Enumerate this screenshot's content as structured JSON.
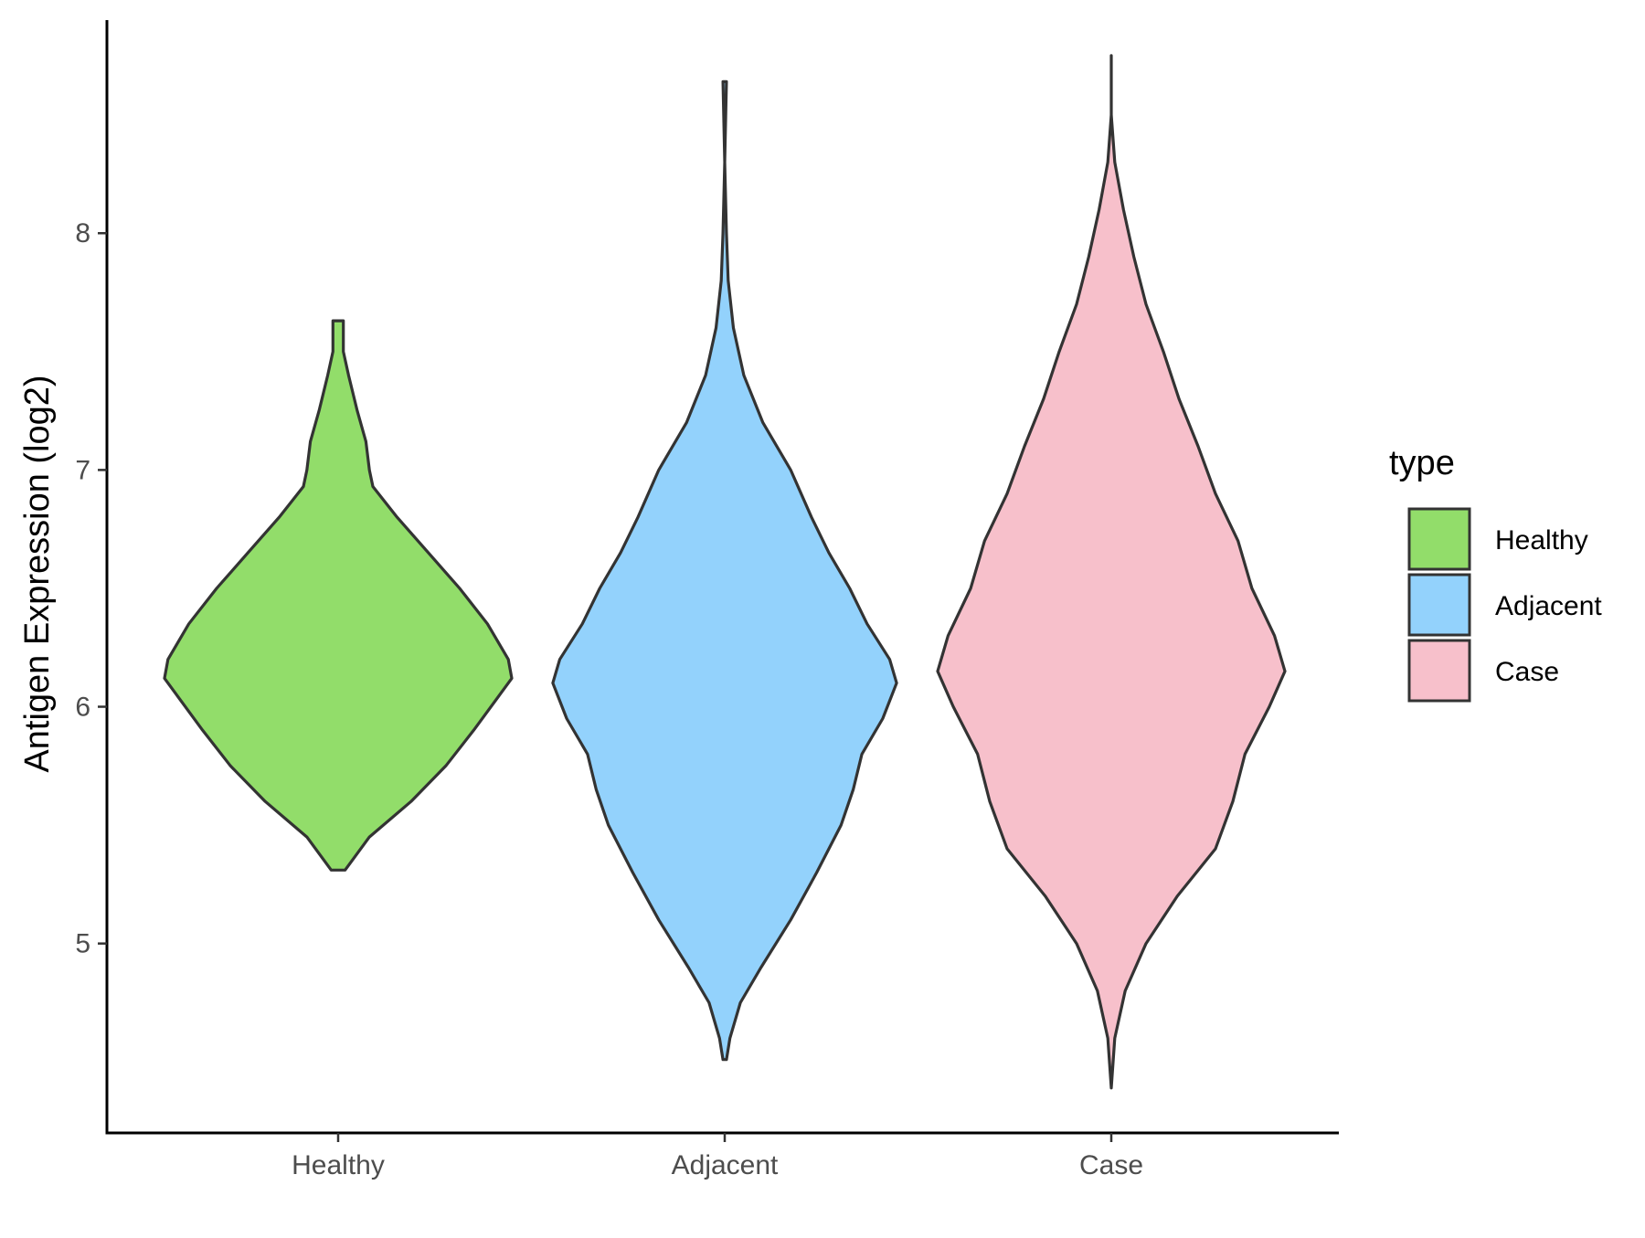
{
  "chart_data": {
    "type": "violin",
    "title": "",
    "xlabel": "",
    "ylabel": "Antigen Expression (log2)",
    "ylim": [
      4.2,
      8.9
    ],
    "yticks": [
      5,
      6,
      7,
      8
    ],
    "categories": [
      "Healthy",
      "Adjacent",
      "Case"
    ],
    "grid": false,
    "legend": {
      "title": "type",
      "position": "right",
      "entries": [
        "Healthy",
        "Adjacent",
        "Case"
      ]
    },
    "colors": {
      "Healthy": "#92dd6a",
      "Adjacent": "#93d2fc",
      "Case": "#f7c0cb",
      "outline": "#333333"
    },
    "series": [
      {
        "name": "Healthy",
        "min": 5.31,
        "max": 7.63,
        "density": [
          [
            5.31,
            0.04
          ],
          [
            5.45,
            0.18
          ],
          [
            5.6,
            0.42
          ],
          [
            5.75,
            0.62
          ],
          [
            5.9,
            0.78
          ],
          [
            6.05,
            0.93
          ],
          [
            6.12,
            1.0
          ],
          [
            6.2,
            0.98
          ],
          [
            6.35,
            0.86
          ],
          [
            6.5,
            0.7
          ],
          [
            6.65,
            0.52
          ],
          [
            6.8,
            0.34
          ],
          [
            6.93,
            0.2
          ],
          [
            7.0,
            0.18
          ],
          [
            7.12,
            0.16
          ],
          [
            7.25,
            0.11
          ],
          [
            7.4,
            0.06
          ],
          [
            7.5,
            0.03
          ],
          [
            7.63,
            0.03
          ]
        ]
      },
      {
        "name": "Adjacent",
        "min": 4.51,
        "max": 8.64,
        "density": [
          [
            4.51,
            0.01
          ],
          [
            4.6,
            0.03
          ],
          [
            4.75,
            0.09
          ],
          [
            4.9,
            0.21
          ],
          [
            5.1,
            0.38
          ],
          [
            5.3,
            0.53
          ],
          [
            5.5,
            0.67
          ],
          [
            5.65,
            0.74
          ],
          [
            5.8,
            0.79
          ],
          [
            5.95,
            0.91
          ],
          [
            6.1,
            0.99
          ],
          [
            6.2,
            0.95
          ],
          [
            6.35,
            0.82
          ],
          [
            6.5,
            0.72
          ],
          [
            6.65,
            0.6
          ],
          [
            6.8,
            0.5
          ],
          [
            7.0,
            0.38
          ],
          [
            7.2,
            0.22
          ],
          [
            7.4,
            0.11
          ],
          [
            7.6,
            0.05
          ],
          [
            7.8,
            0.02
          ],
          [
            8.0,
            0.01
          ],
          [
            8.3,
            0.0
          ],
          [
            8.64,
            0.01
          ]
        ]
      },
      {
        "name": "Case",
        "min": 4.39,
        "max": 8.75,
        "density": [
          [
            4.39,
            0.0
          ],
          [
            4.6,
            0.02
          ],
          [
            4.8,
            0.08
          ],
          [
            5.0,
            0.2
          ],
          [
            5.2,
            0.38
          ],
          [
            5.4,
            0.6
          ],
          [
            5.6,
            0.7
          ],
          [
            5.8,
            0.77
          ],
          [
            6.0,
            0.91
          ],
          [
            6.15,
            1.0
          ],
          [
            6.3,
            0.94
          ],
          [
            6.5,
            0.81
          ],
          [
            6.7,
            0.73
          ],
          [
            6.9,
            0.6
          ],
          [
            7.1,
            0.5
          ],
          [
            7.3,
            0.39
          ],
          [
            7.5,
            0.3
          ],
          [
            7.7,
            0.2
          ],
          [
            7.9,
            0.13
          ],
          [
            8.1,
            0.07
          ],
          [
            8.3,
            0.02
          ],
          [
            8.5,
            0.0
          ],
          [
            8.75,
            0.0
          ]
        ]
      }
    ]
  }
}
